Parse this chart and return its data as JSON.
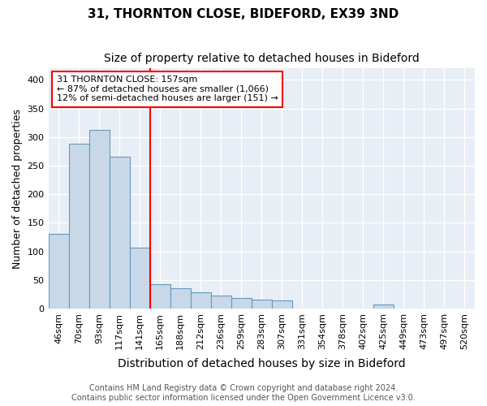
{
  "title1": "31, THORNTON CLOSE, BIDEFORD, EX39 3ND",
  "title2": "Size of property relative to detached houses in Bideford",
  "xlabel": "Distribution of detached houses by size in Bideford",
  "ylabel": "Number of detached properties",
  "bin_labels": [
    "46sqm",
    "70sqm",
    "93sqm",
    "117sqm",
    "141sqm",
    "165sqm",
    "188sqm",
    "212sqm",
    "236sqm",
    "259sqm",
    "283sqm",
    "307sqm",
    "331sqm",
    "354sqm",
    "378sqm",
    "402sqm",
    "425sqm",
    "449sqm",
    "473sqm",
    "497sqm",
    "520sqm"
  ],
  "bar_heights": [
    130,
    288,
    313,
    266,
    107,
    42,
    35,
    28,
    22,
    18,
    16,
    14,
    0,
    0,
    0,
    0,
    7,
    0,
    0,
    0,
    0
  ],
  "bar_color": "#c8d8e8",
  "bar_edge_color": "#6699bb",
  "red_line_x": 4.5,
  "annotation_text": "31 THORNTON CLOSE: 157sqm\n← 87% of detached houses are smaller (1,066)\n12% of semi-detached houses are larger (151) →",
  "annotation_box_color": "white",
  "annotation_box_edge_color": "red",
  "ylim": [
    0,
    420
  ],
  "yticks": [
    0,
    50,
    100,
    150,
    200,
    250,
    300,
    350,
    400
  ],
  "background_color": "#e8eef5",
  "grid_color": "white",
  "footer_text": "Contains HM Land Registry data © Crown copyright and database right 2024.\nContains public sector information licensed under the Open Government Licence v3.0.",
  "title1_fontsize": 11,
  "title2_fontsize": 10,
  "xlabel_fontsize": 10,
  "ylabel_fontsize": 9,
  "tick_fontsize": 8
}
